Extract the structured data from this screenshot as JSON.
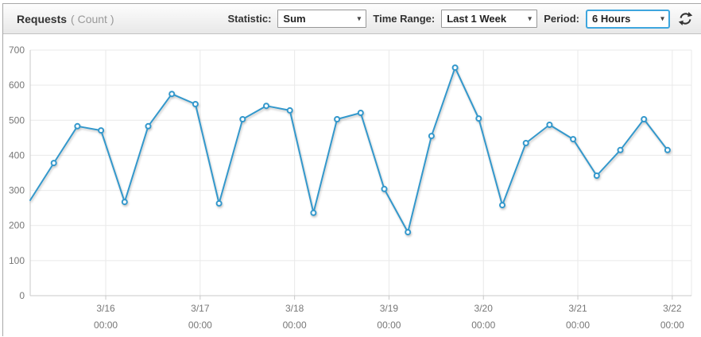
{
  "header": {
    "title": "Requests",
    "unit": "( Count )",
    "statistic_label": "Statistic:",
    "statistic_value": "Sum",
    "time_range_label": "Time Range:",
    "time_range_value": "Last 1 Week",
    "period_label": "Period:",
    "period_value": "6 Hours",
    "refresh_icon": "refresh-circular-arrows-icon"
  },
  "colors": {
    "line": "#3398cc",
    "marker_fill": "#ffffff",
    "grid": "#e9e9e9",
    "axis": "#c8c8c8",
    "tick_text": "#777777",
    "focused_select_border": "#3ea6de",
    "header_text": "#333333"
  },
  "chart_data": {
    "type": "line",
    "title": "Requests ( Count )",
    "ylabel": "Count",
    "statistic": "Sum",
    "time_range": "Last 1 Week",
    "period": "6 Hours",
    "grid": true,
    "legend": "none",
    "ylim": [
      0,
      700
    ],
    "y_ticks": [
      0,
      100,
      200,
      300,
      400,
      500,
      600,
      700
    ],
    "x_ticks": [
      {
        "date": "3/16",
        "time": "00:00"
      },
      {
        "date": "3/17",
        "time": "00:00"
      },
      {
        "date": "3/18",
        "time": "00:00"
      },
      {
        "date": "3/19",
        "time": "00:00"
      },
      {
        "date": "3/20",
        "time": "00:00"
      },
      {
        "date": "3/21",
        "time": "00:00"
      },
      {
        "date": "3/22",
        "time": "00:00"
      }
    ],
    "points_per_day": 4,
    "first_gridline_point_offset": 3.2,
    "values": [
      272,
      378,
      483,
      471,
      267,
      483,
      575,
      546,
      263,
      503,
      541,
      528,
      236,
      503,
      521,
      304,
      181,
      455,
      650,
      505,
      258,
      435,
      487,
      446,
      342,
      415,
      503,
      415
    ]
  }
}
